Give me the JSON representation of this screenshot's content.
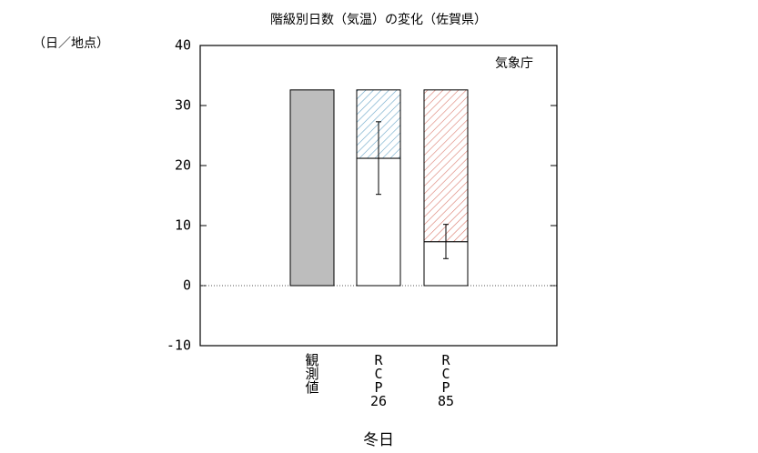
{
  "chart_data": {
    "type": "bar",
    "title": "階級別日数（気温）の変化（佐賀県）",
    "y_unit_label": "（日／地点）",
    "source": "気象庁",
    "x_label": "冬日",
    "categories": [
      "観測値",
      "RCP26",
      "RCP85"
    ],
    "values": [
      32.6,
      21.2,
      7.3
    ],
    "error_low": [
      null,
      15.2,
      4.5
    ],
    "error_high": [
      null,
      27.3,
      10.2
    ],
    "colors": [
      "#bdbdbd",
      "#6aa6c8",
      "#d9776a"
    ],
    "ylim": [
      -10,
      40
    ],
    "yticks": [
      -10,
      0,
      10,
      20,
      30,
      40
    ]
  }
}
